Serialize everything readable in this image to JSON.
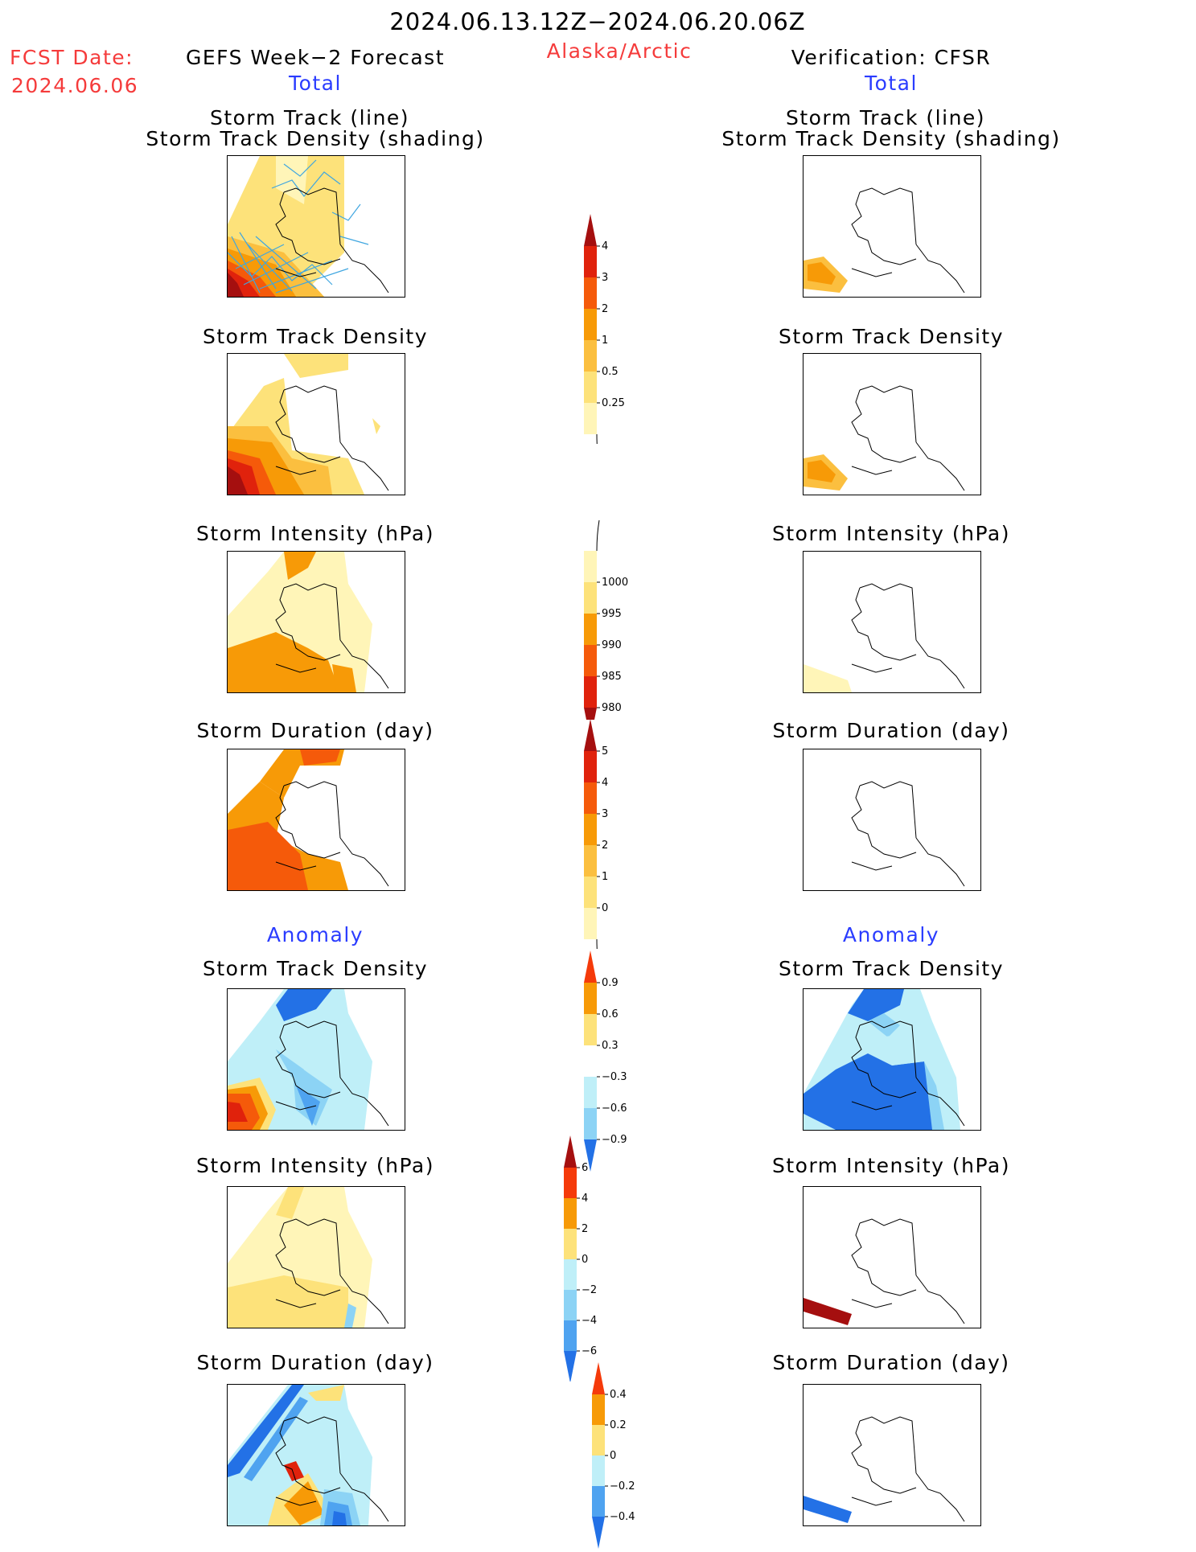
{
  "header": {
    "period": "2024.06.13.12Z−2024.06.20.06Z",
    "fcst_label": "FCST Date:",
    "fcst_date": "2024.06.06",
    "left_title": "GEFS Week−2 Forecast",
    "region": "Alaska/Arctic",
    "right_title": "Verification: CFSR"
  },
  "sections": {
    "total": "Total",
    "anomaly": "Anomaly"
  },
  "panel_titles": {
    "track_line": "Storm Track (line)",
    "track_shading": "Storm Track Density (shading)",
    "density": "Storm Track Density",
    "intensity": "Storm Intensity (hPa)",
    "duration": "Storm Duration (day)"
  },
  "colors": {
    "dark_red": "#a50f0f",
    "red": "#e0220c",
    "orange_red": "#f55a0a",
    "orange": "#f79a07",
    "light_orange": "#fbbf3f",
    "yellow": "#fde27a",
    "pale_yellow": "#fff5b8",
    "pale_blue": "#bfeff8",
    "light_blue": "#8cd3f5",
    "mid_blue": "#4fa3f0",
    "blue": "#2371e6",
    "dark_blue": "#1550cf",
    "track_line": "#3fa6e0"
  },
  "chart_data": [
    {
      "type": "colorbar",
      "name": "total-density",
      "ticks": [
        "4",
        "3",
        "2",
        "1",
        "0.5",
        "0.25"
      ],
      "colors": [
        "#a50f0f",
        "#e0220c",
        "#f55a0a",
        "#f79a07",
        "#fbbf3f",
        "#fde27a",
        "#fff5b8"
      ]
    },
    {
      "type": "colorbar",
      "name": "total-intensity",
      "ticks": [
        "1000",
        "995",
        "990",
        "985",
        "980"
      ],
      "colors": [
        "#fff5b8",
        "#fde27a",
        "#f79a07",
        "#f55a0a",
        "#e0220c",
        "#a50f0f"
      ]
    },
    {
      "type": "colorbar",
      "name": "total-duration",
      "ticks": [
        "5",
        "4",
        "3",
        "2",
        "1",
        "0"
      ],
      "colors": [
        "#a50f0f",
        "#e0220c",
        "#f55a0a",
        "#f79a07",
        "#fbbf3f",
        "#fde27a",
        "#fff5b8"
      ]
    },
    {
      "type": "colorbar",
      "name": "anomaly-density",
      "ticks": [
        "0.9",
        "0.6",
        "0.3",
        "−0.3",
        "−0.6",
        "−0.9"
      ],
      "colors": [
        "#f53a0a",
        "#f79a07",
        "#fde27a",
        "#ffffff",
        "#bfeff8",
        "#8cd3f5",
        "#2371e6"
      ]
    },
    {
      "type": "colorbar",
      "name": "anomaly-intensity",
      "ticks": [
        "6",
        "4",
        "2",
        "0",
        "−2",
        "−4",
        "−6"
      ],
      "colors": [
        "#a50f0f",
        "#f53a0a",
        "#f79a07",
        "#fde27a",
        "#bfeff8",
        "#8cd3f5",
        "#4fa3f0",
        "#2371e6"
      ]
    },
    {
      "type": "colorbar",
      "name": "anomaly-duration",
      "ticks": [
        "0.4",
        "0.2",
        "0",
        "−0.2",
        "−0.4"
      ],
      "colors": [
        "#f53a0a",
        "#f79a07",
        "#fde27a",
        "#bfeff8",
        "#4fa3f0",
        "#2371e6"
      ]
    }
  ]
}
